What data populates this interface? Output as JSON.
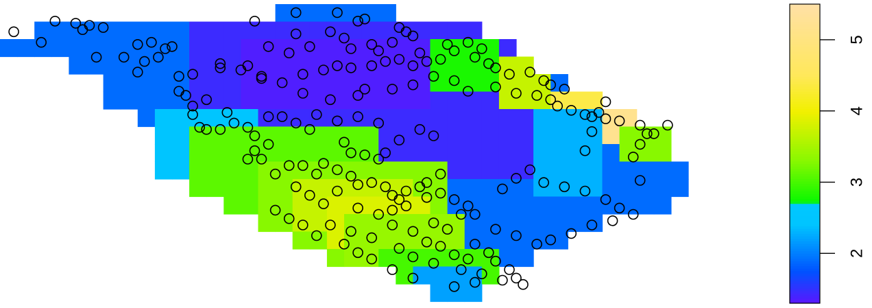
{
  "chart_data": {
    "type": "heatmap",
    "title": "",
    "xlabel": "",
    "ylabel": "",
    "grid": false,
    "legend": {
      "placement": "right",
      "kind": "colorbar",
      "ticks": [
        {
          "value": 2,
          "label": "2"
        },
        {
          "value": 3,
          "label": "3"
        },
        {
          "value": 4,
          "label": "4"
        },
        {
          "value": 5,
          "label": "5"
        }
      ],
      "range": [
        1.3,
        5.5
      ],
      "stops": [
        {
          "value": 1.3,
          "color": "#5a17ff"
        },
        {
          "value": 1.75,
          "color": "#0052ff"
        },
        {
          "value": 2.4,
          "color": "#00c4ff"
        },
        {
          "value": 2.7,
          "color": "#00c8ff"
        },
        {
          "value": 2.72,
          "color": "#08f800"
        },
        {
          "value": 3.3,
          "color": "#88f800"
        },
        {
          "value": 4.0,
          "color": "#f2f000"
        },
        {
          "value": 4.5,
          "color": "#ffe85a"
        },
        {
          "value": 5.5,
          "color": "#ffe0a6"
        }
      ]
    },
    "grid_shape": {
      "rows": 17,
      "cols": 40
    },
    "field": [
      {
        "rows": [
          0,
          16
        ],
        "cols": [
          0,
          39
        ],
        "value": 1.9
      },
      {
        "rows": [
          1,
          9
        ],
        "cols": [
          11,
          30
        ],
        "value": 1.45
      },
      {
        "rows": [
          2,
          5
        ],
        "cols": [
          14,
          24
        ],
        "value": 1.35
      },
      {
        "rows": [
          6,
          9
        ],
        "cols": [
          9,
          14
        ],
        "value": 2.5
      },
      {
        "rows": [
          7,
          13
        ],
        "cols": [
          11,
          21
        ],
        "value": 3.1
      },
      {
        "rows": [
          9,
          14
        ],
        "cols": [
          15,
          25
        ],
        "value": 3.3
      },
      {
        "rows": [
          10,
          12
        ],
        "cols": [
          17,
          23
        ],
        "value": 3.7
      },
      {
        "rows": [
          11,
          13
        ],
        "cols": [
          19,
          24
        ],
        "value": 3.85
      },
      {
        "rows": [
          12,
          14
        ],
        "cols": [
          20,
          26
        ],
        "value": 3.4
      },
      {
        "rows": [
          14,
          15
        ],
        "cols": [
          22,
          28
        ],
        "value": 3.0
      },
      {
        "rows": [
          15,
          16
        ],
        "cols": [
          24,
          27
        ],
        "value": 2.2
      },
      {
        "rows": [
          2,
          4
        ],
        "cols": [
          25,
          28
        ],
        "value": 2.8
      },
      {
        "rows": [
          3,
          5
        ],
        "cols": [
          29,
          31
        ],
        "value": 3.7
      },
      {
        "rows": [
          5,
          6
        ],
        "cols": [
          32,
          35
        ],
        "value": 4.4
      },
      {
        "rows": [
          6,
          7
        ],
        "cols": [
          35,
          37
        ],
        "value": 5.2
      },
      {
        "rows": [
          7,
          8
        ],
        "cols": [
          36,
          38
        ],
        "value": 3.3
      },
      {
        "rows": [
          6,
          10
        ],
        "cols": [
          31,
          34
        ],
        "value": 2.3
      }
    ],
    "points_note": "",
    "points": [
      [
        0.02,
        0.13
      ],
      [
        0.08,
        0.08
      ],
      [
        0.11,
        0.09
      ],
      [
        0.12,
        0.12
      ],
      [
        0.13,
        0.1
      ],
      [
        0.15,
        0.11
      ],
      [
        0.06,
        0.18
      ],
      [
        0.2,
        0.19
      ],
      [
        0.22,
        0.18
      ],
      [
        0.24,
        0.21
      ],
      [
        0.23,
        0.25
      ],
      [
        0.25,
        0.2
      ],
      [
        0.14,
        0.25
      ],
      [
        0.18,
        0.25
      ],
      [
        0.21,
        0.27
      ],
      [
        0.2,
        0.32
      ],
      [
        0.26,
        0.34
      ],
      [
        0.28,
        0.33
      ],
      [
        0.32,
        0.3
      ],
      [
        0.35,
        0.31
      ],
      [
        0.36,
        0.29
      ],
      [
        0.38,
        0.34
      ],
      [
        0.41,
        0.37
      ],
      [
        0.44,
        0.33
      ],
      [
        0.47,
        0.31
      ],
      [
        0.49,
        0.29
      ],
      [
        0.51,
        0.3
      ],
      [
        0.54,
        0.29
      ],
      [
        0.56,
        0.27
      ],
      [
        0.58,
        0.26
      ],
      [
        0.6,
        0.29
      ],
      [
        0.62,
        0.27
      ],
      [
        0.37,
        0.08
      ],
      [
        0.43,
        0.04
      ],
      [
        0.49,
        0.04
      ],
      [
        0.52,
        0.08
      ],
      [
        0.53,
        0.07
      ],
      [
        0.58,
        0.11
      ],
      [
        0.6,
        0.15
      ],
      [
        0.59,
        0.13
      ],
      [
        0.43,
        0.14
      ],
      [
        0.48,
        0.13
      ],
      [
        0.5,
        0.16
      ],
      [
        0.54,
        0.19
      ],
      [
        0.57,
        0.18
      ],
      [
        0.65,
        0.19
      ],
      [
        0.68,
        0.18
      ],
      [
        0.7,
        0.21
      ],
      [
        0.39,
        0.2
      ],
      [
        0.42,
        0.23
      ],
      [
        0.45,
        0.2
      ],
      [
        0.51,
        0.21
      ],
      [
        0.55,
        0.22
      ],
      [
        0.61,
        0.23
      ],
      [
        0.64,
        0.26
      ],
      [
        0.66,
        0.22
      ],
      [
        0.69,
        0.25
      ],
      [
        0.71,
        0.28
      ],
      [
        0.72,
        0.3
      ],
      [
        0.74,
        0.33
      ],
      [
        0.77,
        0.32
      ],
      [
        0.79,
        0.36
      ],
      [
        0.8,
        0.38
      ],
      [
        0.82,
        0.4
      ],
      [
        0.32,
        0.28
      ],
      [
        0.38,
        0.35
      ],
      [
        0.44,
        0.42
      ],
      [
        0.48,
        0.45
      ],
      [
        0.52,
        0.43
      ],
      [
        0.53,
        0.4
      ],
      [
        0.57,
        0.4
      ],
      [
        0.6,
        0.38
      ],
      [
        0.63,
        0.34
      ],
      [
        0.66,
        0.36
      ],
      [
        0.68,
        0.41
      ],
      [
        0.72,
        0.39
      ],
      [
        0.75,
        0.42
      ],
      [
        0.78,
        0.43
      ],
      [
        0.8,
        0.45
      ],
      [
        0.81,
        0.48
      ],
      [
        0.83,
        0.5
      ],
      [
        0.85,
        0.52
      ],
      [
        0.86,
        0.53
      ],
      [
        0.87,
        0.51
      ],
      [
        0.88,
        0.54
      ],
      [
        0.9,
        0.55
      ],
      [
        0.93,
        0.57
      ],
      [
        0.94,
        0.61
      ],
      [
        0.95,
        0.61
      ],
      [
        0.93,
        0.66
      ],
      [
        0.92,
        0.72
      ],
      [
        0.93,
        0.83
      ],
      [
        0.97,
        0.57
      ],
      [
        0.88,
        0.46
      ],
      [
        0.86,
        0.6
      ],
      [
        0.85,
        0.69
      ],
      [
        0.26,
        0.41
      ],
      [
        0.27,
        0.43
      ],
      [
        0.3,
        0.45
      ],
      [
        0.28,
        0.48
      ],
      [
        0.28,
        0.52
      ],
      [
        0.29,
        0.58
      ],
      [
        0.3,
        0.59
      ],
      [
        0.32,
        0.59
      ],
      [
        0.33,
        0.51
      ],
      [
        0.34,
        0.56
      ],
      [
        0.36,
        0.58
      ],
      [
        0.37,
        0.62
      ],
      [
        0.39,
        0.66
      ],
      [
        0.37,
        0.69
      ],
      [
        0.36,
        0.73
      ],
      [
        0.38,
        0.73
      ],
      [
        0.39,
        0.53
      ],
      [
        0.41,
        0.53
      ],
      [
        0.43,
        0.56
      ],
      [
        0.45,
        0.59
      ],
      [
        0.46,
        0.52
      ],
      [
        0.49,
        0.55
      ],
      [
        0.52,
        0.53
      ],
      [
        0.55,
        0.56
      ],
      [
        0.5,
        0.65
      ],
      [
        0.51,
        0.7
      ],
      [
        0.53,
        0.71
      ],
      [
        0.55,
        0.73
      ],
      [
        0.56,
        0.7
      ],
      [
        0.58,
        0.64
      ],
      [
        0.61,
        0.59
      ],
      [
        0.63,
        0.62
      ],
      [
        0.4,
        0.8
      ],
      [
        0.42,
        0.76
      ],
      [
        0.44,
        0.76
      ],
      [
        0.46,
        0.8
      ],
      [
        0.47,
        0.75
      ],
      [
        0.49,
        0.78
      ],
      [
        0.51,
        0.81
      ],
      [
        0.52,
        0.85
      ],
      [
        0.54,
        0.84
      ],
      [
        0.56,
        0.86
      ],
      [
        0.57,
        0.9
      ],
      [
        0.58,
        0.92
      ],
      [
        0.59,
        0.88
      ],
      [
        0.61,
        0.86
      ],
      [
        0.62,
        0.84
      ],
      [
        0.64,
        0.8
      ],
      [
        0.43,
        0.86
      ],
      [
        0.45,
        0.9
      ],
      [
        0.47,
        0.94
      ],
      [
        0.49,
        0.88
      ],
      [
        0.52,
        0.96
      ],
      [
        0.55,
        0.99
      ],
      [
        0.57,
        0.97
      ],
      [
        0.59,
        0.95
      ],
      [
        0.62,
        0.91
      ],
      [
        0.64,
        0.89
      ],
      [
        0.66,
        0.92
      ],
      [
        0.68,
        0.95
      ],
      [
        0.69,
        0.99
      ],
      [
        0.63,
        1.03
      ],
      [
        0.65,
        1.06
      ],
      [
        0.67,
        0.99
      ],
      [
        0.48,
        1.04
      ],
      [
        0.51,
        1.07
      ],
      [
        0.54,
        1.1
      ],
      [
        0.57,
        1.04
      ],
      [
        0.6,
        1.07
      ],
      [
        0.62,
        1.12
      ],
      [
        0.64,
        1.14
      ],
      [
        0.66,
        1.18
      ],
      [
        0.68,
        1.2
      ],
      [
        0.69,
        1.13
      ],
      [
        0.71,
        1.17
      ],
      [
        0.72,
        1.21
      ],
      [
        0.74,
        1.25
      ],
      [
        0.75,
        1.29
      ],
      [
        0.69,
        1.31
      ],
      [
        0.66,
        1.33
      ],
      [
        0.6,
        1.29
      ],
      [
        0.57,
        1.25
      ],
      [
        0.54,
        1.2
      ],
      [
        0.52,
        1.17
      ],
      [
        0.5,
        1.13
      ],
      [
        0.46,
        1.09
      ],
      [
        0.44,
        1.04
      ],
      [
        0.42,
        1.01
      ],
      [
        0.4,
        0.97
      ],
      [
        0.58,
        1.15
      ],
      [
        0.6,
        1.19
      ],
      [
        0.63,
        1.22
      ],
      [
        0.67,
        1.25
      ],
      [
        0.7,
        1.27
      ],
      [
        0.73,
        1.3
      ],
      [
        0.76,
        1.32
      ],
      [
        0.73,
        0.87
      ],
      [
        0.75,
        0.82
      ],
      [
        0.77,
        0.78
      ],
      [
        0.79,
        0.84
      ],
      [
        0.82,
        0.86
      ],
      [
        0.85,
        0.88
      ],
      [
        0.88,
        0.92
      ],
      [
        0.9,
        0.96
      ],
      [
        0.92,
        0.99
      ],
      [
        0.89,
        1.02
      ],
      [
        0.86,
        1.04
      ],
      [
        0.83,
        1.08
      ],
      [
        0.8,
        1.11
      ],
      [
        0.78,
        1.13
      ],
      [
        0.75,
        1.09
      ],
      [
        0.72,
        1.06
      ]
    ]
  }
}
